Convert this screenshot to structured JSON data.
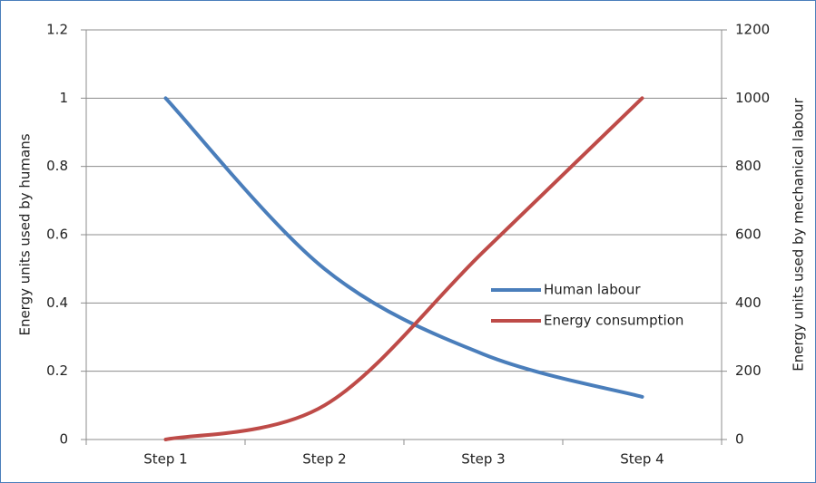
{
  "chart_data": {
    "type": "line",
    "categories": [
      "Step 1",
      "Step 2",
      "Step 3",
      "Step 4"
    ],
    "series": [
      {
        "name": "Human labour",
        "color": "#4a7ebb",
        "values": [
          1,
          0.5,
          0.25,
          0.125
        ]
      },
      {
        "name": "Energy consumption",
        "color": "#be4b48",
        "axis": "y2",
        "values": [
          0,
          100,
          550,
          1000
        ]
      }
    ],
    "ylabel": "Energy units used by humans",
    "y2label": "Energy units used by mechanical labour",
    "ylim": [
      0,
      1.2
    ],
    "yticks": [
      0,
      0.2,
      0.4,
      0.6,
      0.8,
      1,
      1.2
    ],
    "y2lim": [
      0,
      1200
    ],
    "y2ticks": [
      0,
      200,
      400,
      600,
      800,
      1000,
      1200
    ],
    "grid": true,
    "smooth": true
  }
}
